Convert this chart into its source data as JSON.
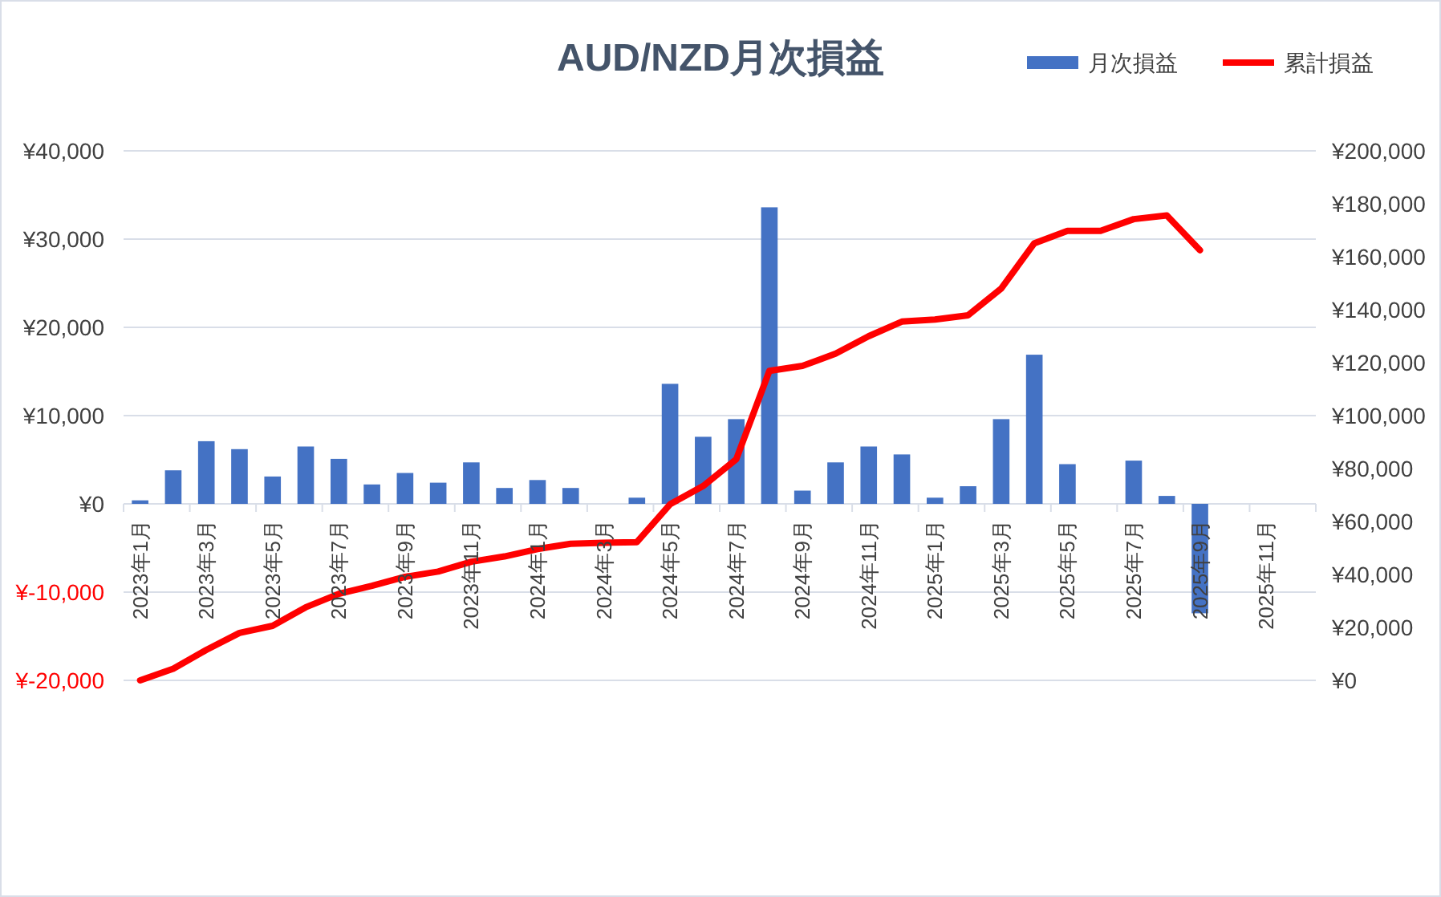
{
  "chart_data": {
    "type": "bar",
    "title": "AUD/NZD月次損益",
    "categories": [
      "2023年1月",
      null,
      "2023年3月",
      null,
      "2023年5月",
      null,
      "2023年7月",
      null,
      "2023年9月",
      null,
      "2023年11月",
      null,
      "2024年1月",
      null,
      "2024年3月",
      null,
      "2024年5月",
      null,
      "2024年7月",
      null,
      "2024年9月",
      null,
      "2024年11月",
      null,
      "2025年1月",
      null,
      "2025年3月",
      null,
      "2025年5月",
      null,
      "2025年7月",
      null,
      "2025年9月",
      null,
      "2025年11月",
      null
    ],
    "series": [
      {
        "name": "月次損益",
        "color": "#4472c4",
        "values": [
          400,
          3800,
          7100,
          6200,
          3100,
          6500,
          5100,
          2200,
          3500,
          2400,
          4700,
          1800,
          2700,
          1800,
          0,
          700,
          13600,
          7600,
          9600,
          33600,
          1500,
          4700,
          6500,
          5600,
          700,
          2000,
          9600,
          16900,
          4500,
          0,
          4900,
          900,
          -12400,
          null,
          null,
          null
        ]
      },
      {
        "name": "累計損益",
        "type": "line",
        "axis": "y2",
        "color": "#ff0000",
        "values": [
          0,
          4400,
          11500,
          17900,
          20600,
          27600,
          32700,
          35700,
          39100,
          41100,
          44800,
          46800,
          49600,
          51600,
          52000,
          52200,
          66500,
          73400,
          83500,
          116900,
          118800,
          123400,
          130000,
          135500,
          136300,
          137900,
          148000,
          165100,
          169800,
          169800,
          174200,
          175600,
          162500,
          null,
          null,
          null
        ]
      }
    ],
    "ylim": [
      -20000,
      40000
    ],
    "yticks": [
      {
        "value": -20000,
        "label": "¥-20,000"
      },
      {
        "value": -10000,
        "label": "¥-10,000"
      },
      {
        "value": 0,
        "label": "¥0"
      },
      {
        "value": 10000,
        "label": "¥10,000"
      },
      {
        "value": 20000,
        "label": "¥20,000"
      },
      {
        "value": 30000,
        "label": "¥30,000"
      },
      {
        "value": 40000,
        "label": "¥40,000"
      }
    ],
    "y2lim": [
      0,
      200000
    ],
    "y2ticks": [
      {
        "value": 0,
        "label": "¥0"
      },
      {
        "value": 20000,
        "label": "¥20,000"
      },
      {
        "value": 40000,
        "label": "¥40,000"
      },
      {
        "value": 60000,
        "label": "¥60,000"
      },
      {
        "value": 80000,
        "label": "¥80,000"
      },
      {
        "value": 100000,
        "label": "¥100,000"
      },
      {
        "value": 120000,
        "label": "¥120,000"
      },
      {
        "value": 140000,
        "label": "¥140,000"
      },
      {
        "value": 160000,
        "label": "¥160,000"
      },
      {
        "value": 180000,
        "label": "¥180,000"
      },
      {
        "value": 200000,
        "label": "¥200,000"
      }
    ],
    "grid": "y",
    "legend": "top right",
    "marker": "none"
  }
}
